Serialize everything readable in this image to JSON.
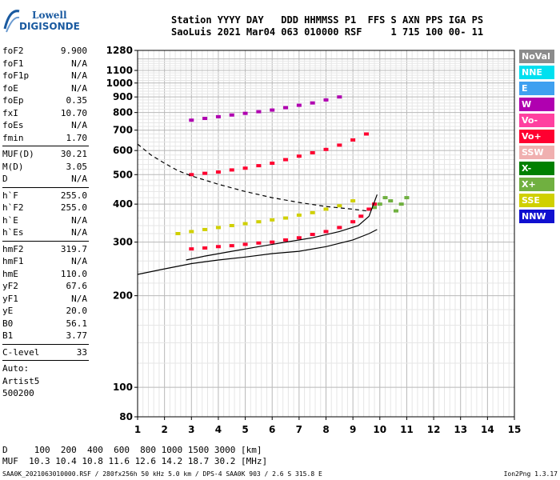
{
  "logo": {
    "line1": "Lowell",
    "line2": "DIGISONDE"
  },
  "header": {
    "line1": "Station YYYY DAY   DDD HHMMSS P1  FFS S AXN PPS IGA PS",
    "line2": "SaoLuis 2021 Mar04 063 010000 RSF     1 715 100 00- 11"
  },
  "params": [
    {
      "group": [
        {
          "label": "foF2",
          "value": "9.900"
        },
        {
          "label": "foF1",
          "value": "N/A"
        },
        {
          "label": "foF1p",
          "value": "N/A"
        },
        {
          "label": "foE",
          "value": "N/A"
        },
        {
          "label": "foEp",
          "value": "0.35"
        },
        {
          "label": "fxI",
          "value": "10.70"
        },
        {
          "label": "foEs",
          "value": "N/A"
        },
        {
          "label": "fmin",
          "value": "1.70"
        }
      ]
    },
    {
      "group": [
        {
          "label": "MUF(D)",
          "value": "30.21"
        },
        {
          "label": "M(D)",
          "value": "3.05"
        },
        {
          "label": "D",
          "value": "N/A"
        }
      ]
    },
    {
      "group": [
        {
          "label": "h`F",
          "value": "255.0"
        },
        {
          "label": "h`F2",
          "value": "255.0"
        },
        {
          "label": "h`E",
          "value": "N/A"
        },
        {
          "label": "h`Es",
          "value": "N/A"
        }
      ]
    },
    {
      "group": [
        {
          "label": "hmF2",
          "value": "319.7"
        },
        {
          "label": "hmF1",
          "value": "N/A"
        },
        {
          "label": "hmE",
          "value": "110.0"
        },
        {
          "label": "yF2",
          "value": "67.6"
        },
        {
          "label": "yF1",
          "value": "N/A"
        },
        {
          "label": "yE",
          "value": "20.0"
        },
        {
          "label": "B0",
          "value": "56.1"
        },
        {
          "label": "B1",
          "value": "3.77"
        }
      ]
    },
    {
      "group": [
        {
          "label": "C-level",
          "value": "33"
        }
      ]
    },
    {
      "group": [
        {
          "label": "Auto:",
          "value": ""
        },
        {
          "label": "Artist5",
          "value": ""
        },
        {
          "label": "500200",
          "value": ""
        }
      ]
    }
  ],
  "legend": [
    {
      "label": "NoVal",
      "color": "#8c8c8c"
    },
    {
      "label": "NNE",
      "color": "#00e0f0"
    },
    {
      "label": "E",
      "color": "#3fa0f0"
    },
    {
      "label": "W",
      "color": "#b000b0"
    },
    {
      "label": "Vo-",
      "color": "#ff40a0"
    },
    {
      "label": "Vo+",
      "color": "#ff0030"
    },
    {
      "label": "SSW",
      "color": "#f0b0b0"
    },
    {
      "label": "X-",
      "color": "#008000"
    },
    {
      "label": "X+",
      "color": "#70b040"
    },
    {
      "label": "SSE",
      "color": "#d0d000"
    },
    {
      "label": "NNW",
      "color": "#1010d0"
    }
  ],
  "muf_table": {
    "row1": "D     100  200  400  600  800 1000 1500 3000 [km]",
    "row2": "MUF  10.3 10.4 10.8 11.6 12.6 14.2 18.7 30.2 [MHz]"
  },
  "footer": {
    "left": "SAA0K_2021063010000.RSF / 280fx256h 50 kHz 5.0 km / DPS-4 SAA0K 903 / 2.6 S 315.8 E",
    "right": "Ion2Png 1.3.17"
  },
  "chart_data": {
    "type": "scatter",
    "title": "",
    "xlabel": "",
    "ylabel": "",
    "xlim": [
      1,
      15
    ],
    "ylim": [
      80,
      1280
    ],
    "y_scale": "log",
    "x_ticks": [
      1,
      2,
      3,
      4,
      5,
      6,
      7,
      8,
      9,
      10,
      11,
      12,
      13,
      14,
      15
    ],
    "y_ticks": [
      80,
      100,
      200,
      300,
      400,
      500,
      600,
      700,
      800,
      900,
      1000,
      1100,
      1280
    ],
    "grid": true,
    "series": [
      {
        "name": "Vo+",
        "color": "#ff0030",
        "x": [
          3.0,
          3.5,
          4.0,
          4.5,
          5.0,
          5.5,
          6.0,
          6.5,
          7.0,
          7.5,
          8.0,
          8.5,
          9.0,
          9.3,
          9.6,
          9.8
        ],
        "y": [
          285,
          287,
          290,
          292,
          295,
          298,
          300,
          305,
          310,
          318,
          325,
          335,
          350,
          365,
          385,
          400
        ]
      },
      {
        "name": "Vo+",
        "color": "#ff0030",
        "x": [
          3.0,
          3.5,
          4.0,
          4.5,
          5.0,
          5.5,
          6.0,
          6.5,
          7.0,
          7.5,
          8.0,
          8.5,
          9.0,
          9.5
        ],
        "y": [
          500,
          505,
          510,
          518,
          525,
          535,
          545,
          560,
          575,
          590,
          605,
          625,
          650,
          680
        ]
      },
      {
        "name": "W",
        "color": "#b000b0",
        "x": [
          3.0,
          3.5,
          4.0,
          4.5,
          5.0,
          5.5,
          6.0,
          6.5,
          7.0,
          7.5,
          8.0,
          8.5
        ],
        "y": [
          755,
          765,
          775,
          785,
          795,
          805,
          815,
          830,
          845,
          860,
          880,
          900
        ]
      },
      {
        "name": "SSE",
        "color": "#d0d000",
        "x": [
          2.5,
          3.0,
          3.5,
          4.0,
          4.5,
          5.0,
          5.5,
          6.0,
          6.5,
          7.0,
          7.5,
          8.0,
          8.5,
          9.0
        ],
        "y": [
          320,
          325,
          330,
          335,
          340,
          345,
          350,
          355,
          360,
          368,
          375,
          385,
          395,
          410
        ]
      },
      {
        "name": "X+",
        "color": "#70b040",
        "x": [
          9.8,
          10.0,
          10.2,
          10.4,
          10.6,
          10.8,
          11.0
        ],
        "y": [
          390,
          400,
          420,
          410,
          380,
          400,
          420
        ]
      }
    ],
    "curves": [
      {
        "name": "profile",
        "style": "solid",
        "x": [
          1.0,
          2.0,
          3.0,
          4.0,
          5.0,
          6.0,
          7.0,
          8.0,
          9.0,
          9.6,
          9.9
        ],
        "y": [
          235,
          245,
          255,
          262,
          268,
          275,
          280,
          290,
          305,
          320,
          330
        ]
      },
      {
        "name": "ledge",
        "style": "solid",
        "x": [
          2.8,
          3.5,
          4.5,
          5.5,
          6.5,
          7.5,
          8.5,
          9.2,
          9.6,
          9.9
        ],
        "y": [
          262,
          270,
          280,
          290,
          300,
          310,
          325,
          340,
          365,
          430
        ]
      },
      {
        "name": "dashed",
        "style": "dashed",
        "x": [
          1.0,
          1.5,
          2.0,
          2.5,
          3.0,
          4.0,
          5.0,
          6.0,
          7.0,
          8.0,
          9.0,
          9.5
        ],
        "y": [
          630,
          580,
          545,
          515,
          495,
          465,
          440,
          420,
          405,
          393,
          385,
          380
        ]
      }
    ]
  }
}
